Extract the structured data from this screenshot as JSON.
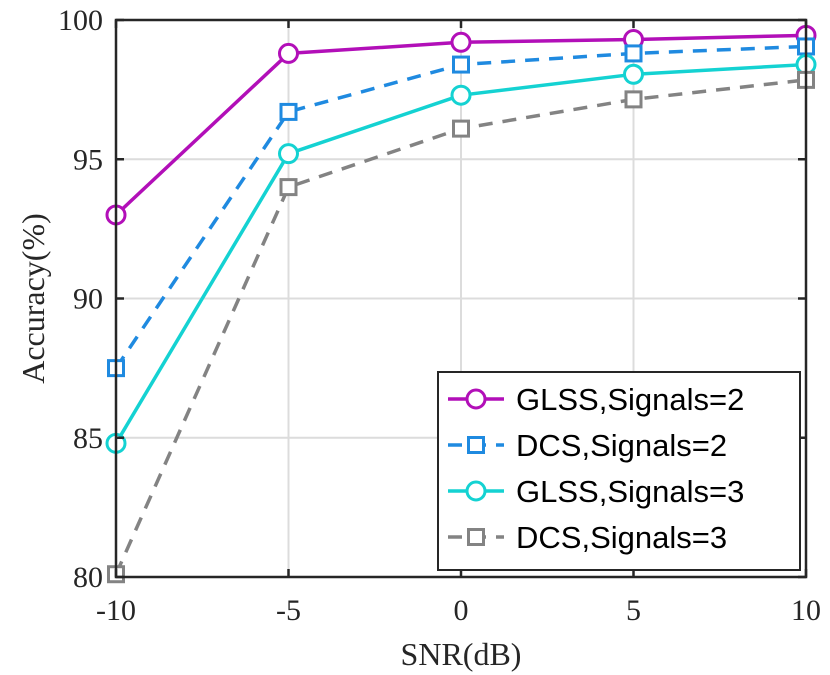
{
  "chart_data": {
    "type": "line",
    "xlabel": "SNR(dB)",
    "ylabel": "Accuracy(%)",
    "x": [
      -10,
      -5,
      0,
      5,
      10
    ],
    "x_ticks": [
      "-10",
      "-5",
      "0",
      "5",
      "10"
    ],
    "y_ticks": [
      "80",
      "85",
      "90",
      "95",
      "100"
    ],
    "xlim": [
      -10,
      10
    ],
    "ylim": [
      80,
      100
    ],
    "grid": true,
    "legend_position": "bottom-right",
    "series": [
      {
        "name": "GLSS,Signals=2",
        "values": [
          93.0,
          98.8,
          99.2,
          99.3,
          99.45
        ],
        "color": "#b20fb8",
        "dash": "solid",
        "marker": "circle"
      },
      {
        "name": "DCS,Signals=2",
        "values": [
          87.5,
          96.7,
          98.4,
          98.8,
          99.05
        ],
        "color": "#1f8ae0",
        "dash": "dashed",
        "marker": "square"
      },
      {
        "name": "GLSS,Signals=3",
        "values": [
          84.8,
          95.2,
          97.3,
          98.05,
          98.4
        ],
        "color": "#14d2d2",
        "dash": "solid",
        "marker": "circle"
      },
      {
        "name": "DCS,Signals=3",
        "values": [
          80.1,
          94.0,
          96.1,
          97.15,
          97.85
        ],
        "color": "#838383",
        "dash": "dashed",
        "marker": "square"
      }
    ]
  }
}
